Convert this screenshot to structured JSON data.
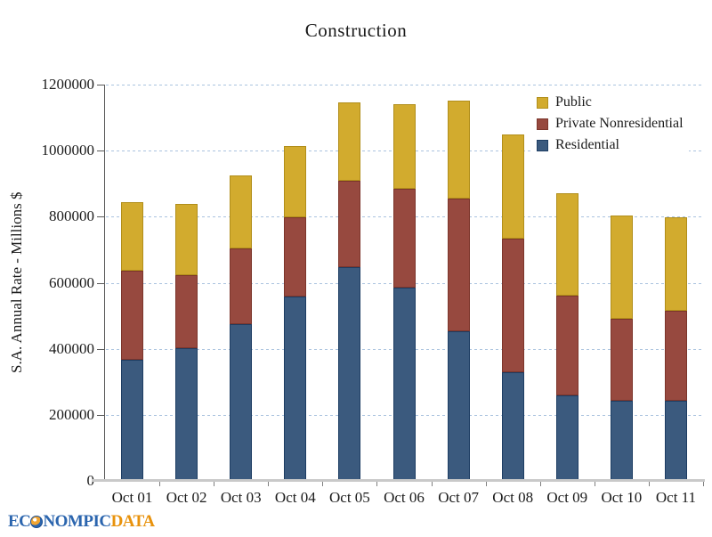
{
  "chart_data": {
    "type": "bar",
    "stacked": true,
    "title": "Construction",
    "ylabel": "S.A. Annual Rate - Millions $",
    "xlabel": "",
    "categories": [
      "Oct 01",
      "Oct 02",
      "Oct 03",
      "Oct 04",
      "Oct 05",
      "Oct 06",
      "Oct 07",
      "Oct 08",
      "Oct 09",
      "Oct 10",
      "Oct 11"
    ],
    "series": [
      {
        "name": "Residential",
        "color": "#3b5a7e",
        "border_color": "#1d3d63",
        "values": [
          368000,
          401000,
          474000,
          557000,
          647000,
          584000,
          453000,
          330000,
          258000,
          242000,
          244000
        ]
      },
      {
        "name": "Private Nonresidential",
        "color": "#97493f",
        "border_color": "#7c352b",
        "values": [
          269000,
          221000,
          229000,
          241000,
          262000,
          298000,
          403000,
          405000,
          301000,
          249000,
          273000
        ]
      },
      {
        "name": "Public",
        "color": "#d2ab2e",
        "border_color": "#b18e1a",
        "values": [
          207000,
          216000,
          221000,
          216000,
          238000,
          256000,
          297000,
          315000,
          309000,
          314000,
          282000
        ]
      }
    ],
    "stack_order_bottom_to_top": [
      "Residential",
      "Private Nonresidential",
      "Public"
    ],
    "legend": {
      "position": "top-right",
      "order": [
        "Public",
        "Private Nonresidential",
        "Residential"
      ]
    },
    "ylim": [
      0,
      1200000
    ],
    "ytick_step": 200000,
    "ytick_labels": [
      "0",
      "200000",
      "400000",
      "600000",
      "800000",
      "1000000",
      "1200000"
    ],
    "grid": "horizontal dashed"
  },
  "colors": {
    "grid": "#aac3df",
    "axis": "#595959",
    "baseline": "#c9c9c9",
    "x_tick": "#7f7f7f",
    "text": "#1b1b1b",
    "background": "#ffffff"
  },
  "branding": {
    "logo_prefix": "EC",
    "logo_middle": "NOMPIC",
    "logo_suffix": "DATA"
  }
}
